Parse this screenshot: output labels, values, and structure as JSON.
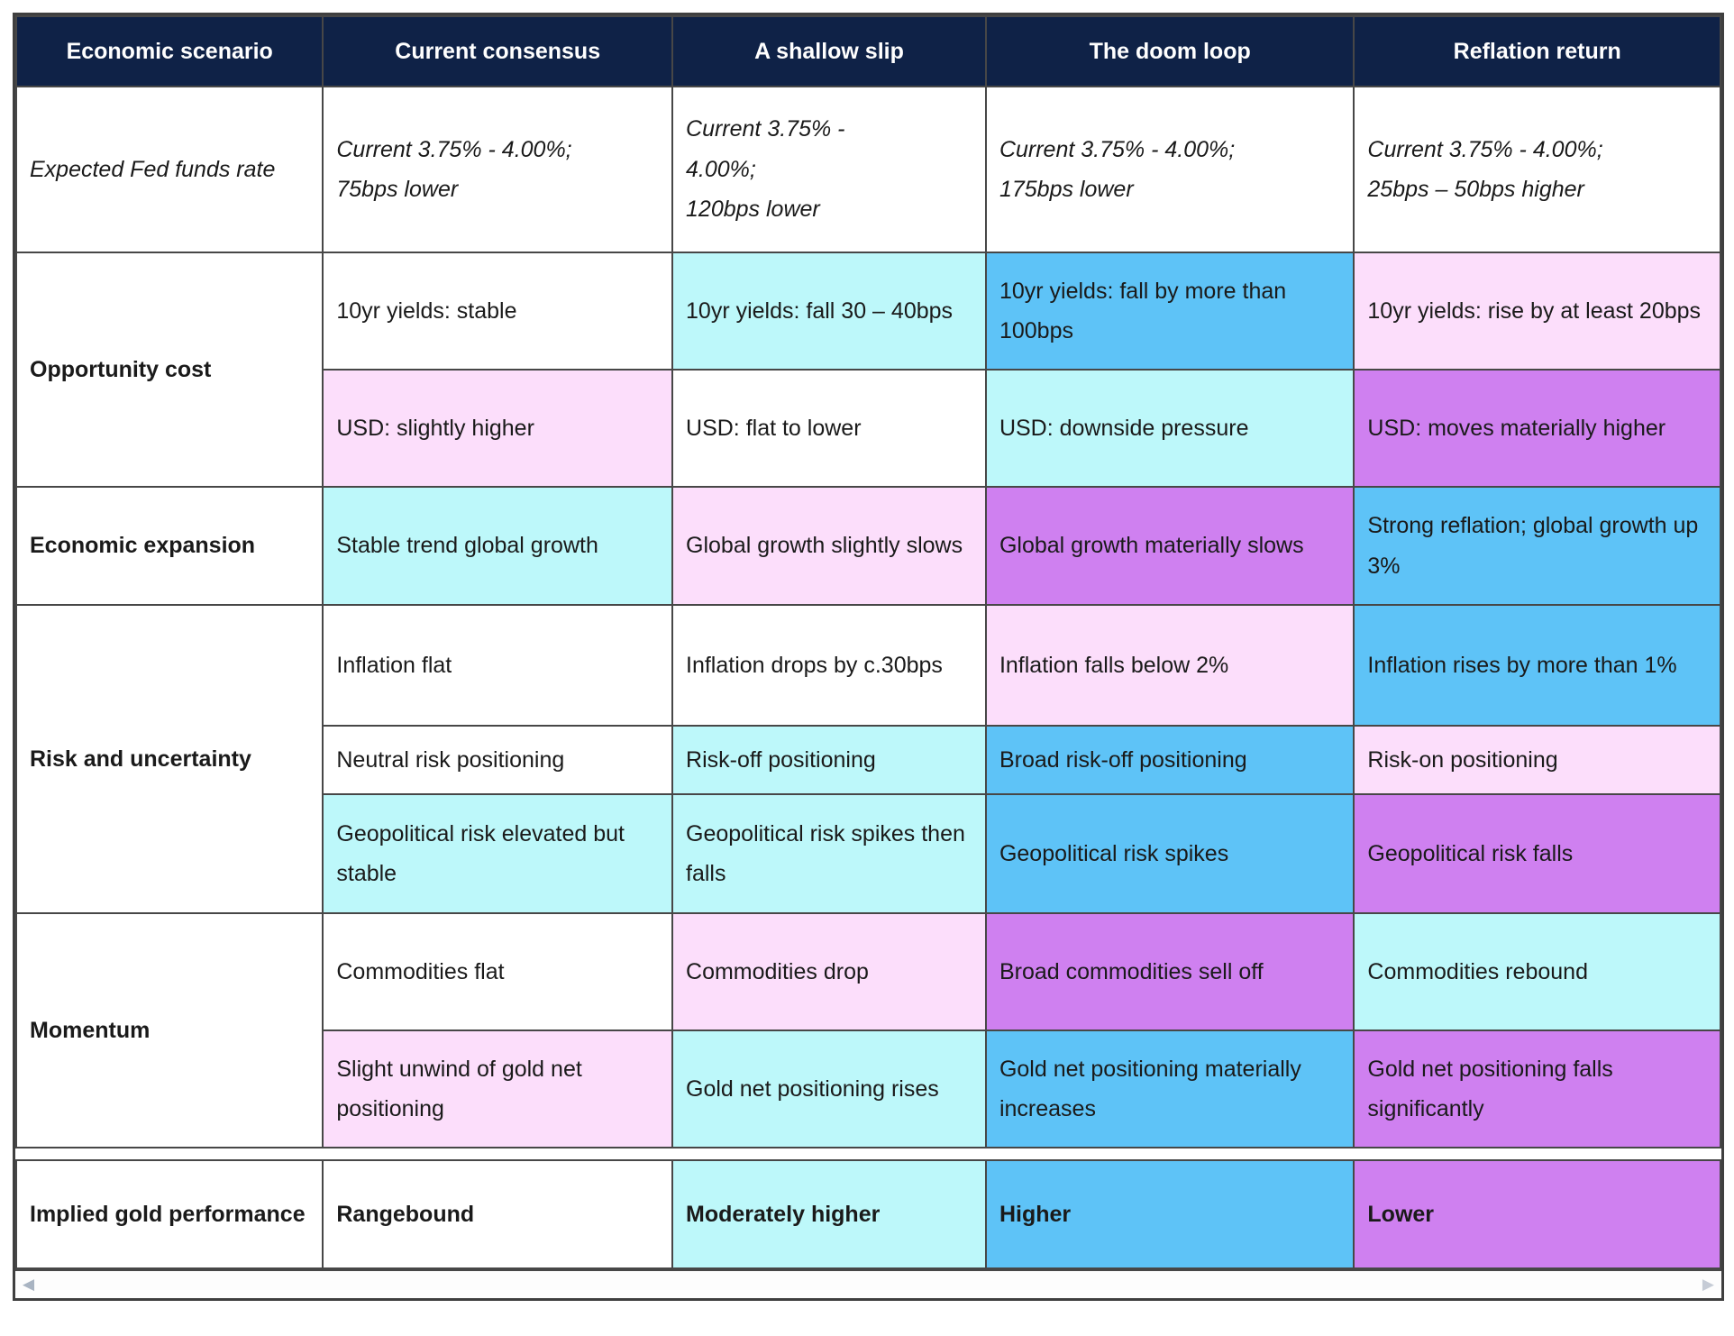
{
  "palette": {
    "header_bg": "#0f2247",
    "header_text": "#ffffff",
    "cyan": "#bdf8fa",
    "pink": "#fcdefb",
    "blue": "#5ec3f7",
    "purple": "#cf80f0",
    "border": "#474747",
    "body_text": "#1a1a1a"
  },
  "header": {
    "col0": "Economic scenario",
    "col1": "Current consensus",
    "col2": "A shallow slip",
    "col3": "The doom loop",
    "col4": "Reflation return"
  },
  "rows": {
    "fed": {
      "label": "Expected Fed funds rate",
      "c1": "Current 3.75% - 4.00%;\n75bps lower",
      "c2": "Current 3.75% -\n4.00%;\n120bps lower",
      "c3": "Current 3.75% - 4.00%;\n175bps lower",
      "c4": "Current 3.75% - 4.00%;\n25bps – 50bps higher"
    },
    "opportunity": {
      "label": "Opportunity cost",
      "yields": {
        "c1": "10yr yields: stable",
        "c2": "10yr yields: fall 30 – 40bps",
        "c3": "10yr yields: fall by more than 100bps",
        "c4": "10yr yields: rise by at least 20bps"
      },
      "usd": {
        "c1": "USD: slightly higher",
        "c2": "USD: flat to lower",
        "c3": "USD: downside pressure",
        "c4": "USD: moves materially higher"
      }
    },
    "expansion": {
      "label": "Economic expansion",
      "c1": "Stable trend global growth",
      "c2": "Global growth slightly slows",
      "c3": "Global growth materially slows",
      "c4": "Strong reflation; global growth up 3%"
    },
    "risk": {
      "label": "Risk and uncertainty",
      "inflation": {
        "c1": "Inflation flat",
        "c2": "Inflation drops by c.30bps",
        "c3": "Inflation falls below 2%",
        "c4": "Inflation rises by more than 1%"
      },
      "positioning": {
        "c1": "Neutral risk positioning",
        "c2": "Risk-off positioning",
        "c3": "Broad risk-off positioning",
        "c4": "Risk-on positioning"
      },
      "geopolitical": {
        "c1": "Geopolitical risk elevated but stable",
        "c2": "Geopolitical risk spikes then falls",
        "c3": "Geopolitical risk spikes",
        "c4": "Geopolitical risk falls"
      }
    },
    "momentum": {
      "label": "Momentum",
      "commodities": {
        "c1": "Commodities flat",
        "c2": "Commodities drop",
        "c3": "Broad commodities sell off",
        "c4": "Commodities rebound"
      },
      "gold": {
        "c1": "Slight unwind of gold net positioning",
        "c2": "Gold net positioning rises",
        "c3": "Gold net positioning materially increases",
        "c4": "Gold net positioning falls significantly"
      }
    },
    "implied": {
      "label": "Implied gold performance",
      "c1": "Rangebound",
      "c2": "Moderately higher",
      "c3": "Higher",
      "c4": "Lower"
    }
  },
  "scrollbar": {
    "left_arrow": "◀",
    "right_arrow": "▶"
  }
}
